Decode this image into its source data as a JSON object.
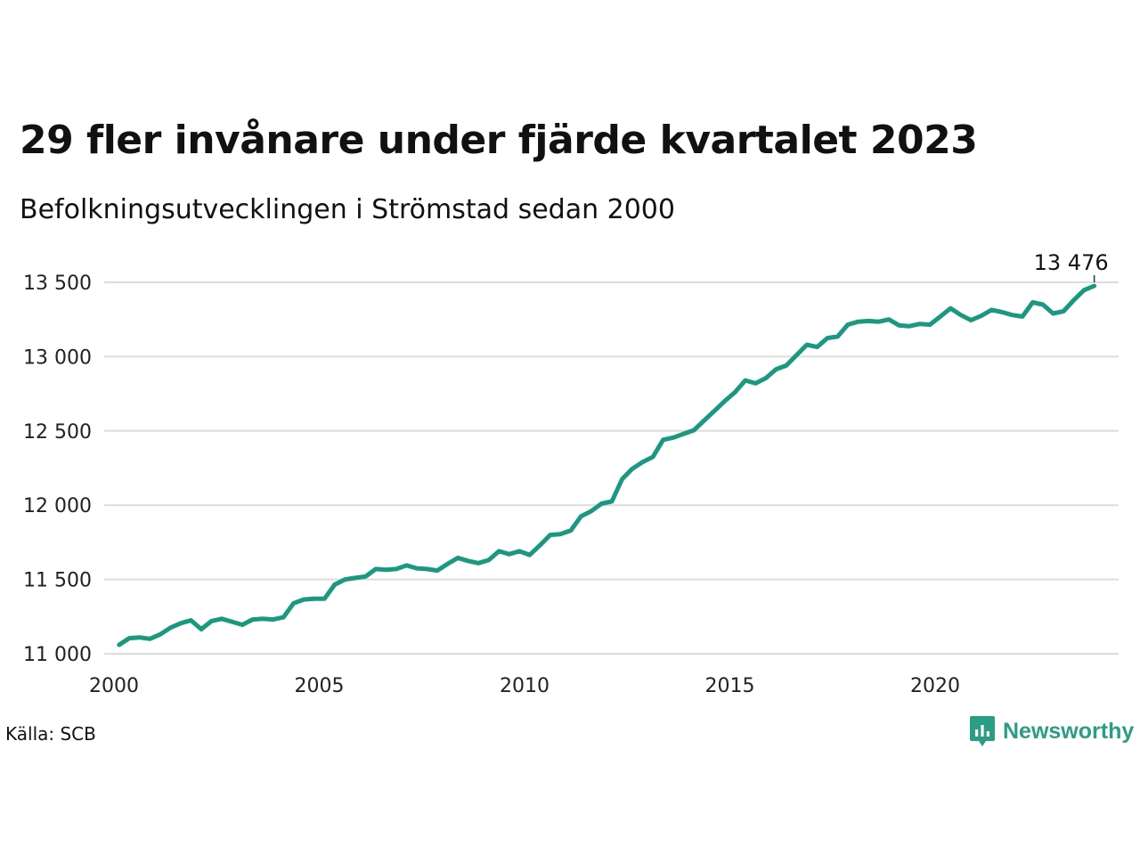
{
  "title": "29 fler invånare under fjärde kvartalet 2023",
  "subtitle": "Befolkningsutvecklingen i Strömstad sedan 2000",
  "source": "Källa: SCB",
  "brand": {
    "name": "Newsworthy",
    "icon": "newsworthy-chart-logo-icon",
    "color": "#2a9d84"
  },
  "chart_data": {
    "type": "line",
    "line_color": "#1a9880",
    "grid": true,
    "x_ticks": [
      "2000",
      "2005",
      "2010",
      "2015",
      "2020"
    ],
    "y_ticks": [
      "11 000",
      "11 500",
      "12 000",
      "12 500",
      "13 000",
      "13 500"
    ],
    "xlim": [
      2000,
      2024.6
    ],
    "ylim": [
      11000,
      13500
    ],
    "end_label": "13 476",
    "series": [
      {
        "x": [
          2000.125,
          2000.375,
          2000.625,
          2000.875,
          2001.125,
          2001.375,
          2001.625,
          2001.875,
          2002.125,
          2002.375,
          2002.625,
          2002.875,
          2003.125,
          2003.375,
          2003.625,
          2003.875,
          2004.125,
          2004.375,
          2004.625,
          2004.875,
          2005.125,
          2005.375,
          2005.625,
          2005.875,
          2006.125,
          2006.375,
          2006.625,
          2006.875,
          2007.125,
          2007.375,
          2007.625,
          2007.875,
          2008.125,
          2008.375,
          2008.625,
          2008.875,
          2009.125,
          2009.375,
          2009.625,
          2009.875,
          2010.125,
          2010.375,
          2010.625,
          2010.875,
          2011.125,
          2011.375,
          2011.625,
          2011.875,
          2012.125,
          2012.375,
          2012.625,
          2012.875,
          2013.125,
          2013.375,
          2013.625,
          2013.875,
          2014.125,
          2014.375,
          2014.625,
          2014.875,
          2015.125,
          2015.375,
          2015.625,
          2015.875,
          2016.125,
          2016.375,
          2016.625,
          2016.875,
          2017.125,
          2017.375,
          2017.625,
          2017.875,
          2018.125,
          2018.375,
          2018.625,
          2018.875,
          2019.125,
          2019.375,
          2019.625,
          2019.875,
          2020.125,
          2020.375,
          2020.625,
          2020.875,
          2021.125,
          2021.375,
          2021.625,
          2021.875,
          2022.125,
          2022.375,
          2022.625,
          2022.875,
          2023.125,
          2023.375,
          2023.625,
          2023.875
        ],
        "y": [
          11060,
          11105,
          11110,
          11100,
          11130,
          11175,
          11205,
          11225,
          11165,
          11220,
          11235,
          11215,
          11195,
          11230,
          11235,
          11230,
          11245,
          11340,
          11365,
          11370,
          11370,
          11465,
          11500,
          11510,
          11520,
          11570,
          11565,
          11570,
          11595,
          11575,
          11570,
          11560,
          11605,
          11645,
          11625,
          11610,
          11630,
          11690,
          11670,
          11690,
          11665,
          11730,
          11800,
          11805,
          11830,
          11925,
          11960,
          12010,
          12025,
          12175,
          12245,
          12290,
          12325,
          12440,
          12455,
          12480,
          12505,
          12570,
          12635,
          12700,
          12760,
          12840,
          12820,
          12855,
          12915,
          12940,
          13010,
          13080,
          13065,
          13125,
          13135,
          13215,
          13235,
          13240,
          13235,
          13250,
          13210,
          13205,
          13220,
          13215,
          13270,
          13325,
          13280,
          13245,
          13275,
          13315,
          13300,
          13280,
          13270,
          13365,
          13350,
          13290,
          13305,
          13380,
          13447,
          13476
        ]
      }
    ]
  }
}
